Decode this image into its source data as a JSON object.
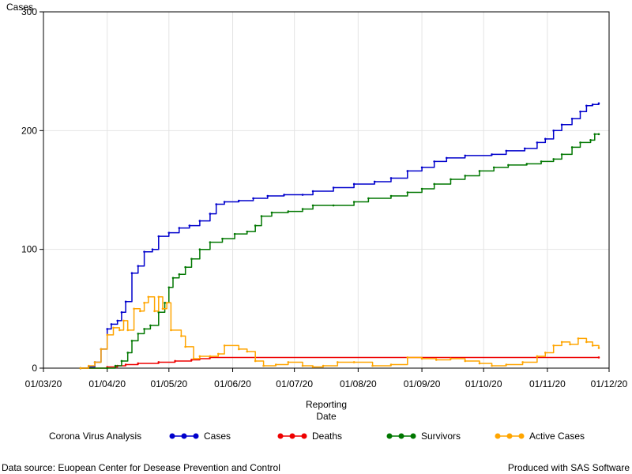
{
  "chart_data": {
    "type": "line",
    "ylabel": "Cases",
    "xlabel": [
      "Reporting",
      "Date"
    ],
    "ylim": [
      0,
      300
    ],
    "yticks": [
      0,
      100,
      200,
      300
    ],
    "xlim": [
      "2020-03-01",
      "2020-12-01"
    ],
    "xticks": [
      {
        "date": "2020-03-01",
        "label": "01/03/20"
      },
      {
        "date": "2020-04-01",
        "label": "01/04/20"
      },
      {
        "date": "2020-05-01",
        "label": "01/05/20"
      },
      {
        "date": "2020-06-01",
        "label": "01/06/20"
      },
      {
        "date": "2020-07-01",
        "label": "01/07/20"
      },
      {
        "date": "2020-08-01",
        "label": "01/08/20"
      },
      {
        "date": "2020-09-01",
        "label": "01/09/20"
      },
      {
        "date": "2020-10-01",
        "label": "01/10/20"
      },
      {
        "date": "2020-11-01",
        "label": "01/11/20"
      },
      {
        "date": "2020-12-01",
        "label": "01/12/20"
      }
    ],
    "grid": true,
    "legend": {
      "title": "Corona Virus Analysis",
      "position": "bottom"
    },
    "series": [
      {
        "name": "Cases",
        "color": "#0000cc",
        "points": [
          [
            "2020-03-19",
            0
          ],
          [
            "2020-03-23",
            1
          ],
          [
            "2020-03-26",
            5
          ],
          [
            "2020-03-29",
            16
          ],
          [
            "2020-04-01",
            33
          ],
          [
            "2020-04-03",
            37
          ],
          [
            "2020-04-06",
            40
          ],
          [
            "2020-04-08",
            47
          ],
          [
            "2020-04-10",
            56
          ],
          [
            "2020-04-13",
            80
          ],
          [
            "2020-04-16",
            86
          ],
          [
            "2020-04-19",
            98
          ],
          [
            "2020-04-23",
            100
          ],
          [
            "2020-04-26",
            111
          ],
          [
            "2020-05-01",
            114
          ],
          [
            "2020-05-06",
            118
          ],
          [
            "2020-05-11",
            120
          ],
          [
            "2020-05-16",
            124
          ],
          [
            "2020-05-21",
            130
          ],
          [
            "2020-05-24",
            138
          ],
          [
            "2020-05-28",
            140
          ],
          [
            "2020-06-04",
            141
          ],
          [
            "2020-06-11",
            143
          ],
          [
            "2020-06-18",
            145
          ],
          [
            "2020-06-26",
            146
          ],
          [
            "2020-07-05",
            146
          ],
          [
            "2020-07-10",
            149
          ],
          [
            "2020-07-20",
            152
          ],
          [
            "2020-07-30",
            155
          ],
          [
            "2020-08-09",
            157
          ],
          [
            "2020-08-17",
            160
          ],
          [
            "2020-08-25",
            166
          ],
          [
            "2020-09-01",
            169
          ],
          [
            "2020-09-07",
            174
          ],
          [
            "2020-09-13",
            177
          ],
          [
            "2020-09-22",
            179
          ],
          [
            "2020-10-05",
            180
          ],
          [
            "2020-10-12",
            183
          ],
          [
            "2020-10-21",
            185
          ],
          [
            "2020-10-27",
            190
          ],
          [
            "2020-10-31",
            193
          ],
          [
            "2020-11-04",
            200
          ],
          [
            "2020-11-08",
            205
          ],
          [
            "2020-11-13",
            210
          ],
          [
            "2020-11-17",
            216
          ],
          [
            "2020-11-20",
            221
          ],
          [
            "2020-11-23",
            222
          ],
          [
            "2020-11-26",
            223
          ]
        ]
      },
      {
        "name": "Deaths",
        "color": "#ee0000",
        "points": [
          [
            "2020-03-19",
            0
          ],
          [
            "2020-04-01",
            1
          ],
          [
            "2020-04-06",
            2
          ],
          [
            "2020-04-10",
            3
          ],
          [
            "2020-04-16",
            4
          ],
          [
            "2020-04-26",
            5
          ],
          [
            "2020-05-04",
            6
          ],
          [
            "2020-05-12",
            7
          ],
          [
            "2020-05-16",
            8
          ],
          [
            "2020-05-21",
            9
          ],
          [
            "2020-11-26",
            9
          ]
        ]
      },
      {
        "name": "Survivors",
        "color": "#007700",
        "points": [
          [
            "2020-03-19",
            0
          ],
          [
            "2020-04-01",
            0
          ],
          [
            "2020-04-05",
            2
          ],
          [
            "2020-04-08",
            6
          ],
          [
            "2020-04-11",
            13
          ],
          [
            "2020-04-13",
            23
          ],
          [
            "2020-04-16",
            29
          ],
          [
            "2020-04-19",
            33
          ],
          [
            "2020-04-22",
            36
          ],
          [
            "2020-04-26",
            47
          ],
          [
            "2020-04-29",
            55
          ],
          [
            "2020-05-01",
            68
          ],
          [
            "2020-05-03",
            76
          ],
          [
            "2020-05-06",
            79
          ],
          [
            "2020-05-09",
            85
          ],
          [
            "2020-05-12",
            92
          ],
          [
            "2020-05-16",
            100
          ],
          [
            "2020-05-21",
            106
          ],
          [
            "2020-05-27",
            109
          ],
          [
            "2020-06-02",
            113
          ],
          [
            "2020-06-08",
            115
          ],
          [
            "2020-06-12",
            120
          ],
          [
            "2020-06-15",
            128
          ],
          [
            "2020-06-20",
            131
          ],
          [
            "2020-06-28",
            132
          ],
          [
            "2020-07-05",
            134
          ],
          [
            "2020-07-10",
            137
          ],
          [
            "2020-07-20",
            137
          ],
          [
            "2020-07-30",
            140
          ],
          [
            "2020-08-06",
            143
          ],
          [
            "2020-08-17",
            145
          ],
          [
            "2020-08-25",
            148
          ],
          [
            "2020-09-01",
            151
          ],
          [
            "2020-09-07",
            155
          ],
          [
            "2020-09-15",
            159
          ],
          [
            "2020-09-22",
            162
          ],
          [
            "2020-09-29",
            166
          ],
          [
            "2020-10-06",
            169
          ],
          [
            "2020-10-13",
            171
          ],
          [
            "2020-10-22",
            172
          ],
          [
            "2020-10-29",
            174
          ],
          [
            "2020-11-04",
            176
          ],
          [
            "2020-11-08",
            180
          ],
          [
            "2020-11-13",
            186
          ],
          [
            "2020-11-17",
            190
          ],
          [
            "2020-11-22",
            192
          ],
          [
            "2020-11-24",
            197
          ],
          [
            "2020-11-26",
            197
          ]
        ]
      },
      {
        "name": "Active Cases",
        "color": "#ffa500",
        "points": [
          [
            "2020-03-19",
            0
          ],
          [
            "2020-03-23",
            2
          ],
          [
            "2020-03-26",
            5
          ],
          [
            "2020-03-29",
            16
          ],
          [
            "2020-04-01",
            28
          ],
          [
            "2020-04-04",
            34
          ],
          [
            "2020-04-07",
            32
          ],
          [
            "2020-04-09",
            40
          ],
          [
            "2020-04-11",
            32
          ],
          [
            "2020-04-14",
            50
          ],
          [
            "2020-04-17",
            48
          ],
          [
            "2020-04-19",
            55
          ],
          [
            "2020-04-21",
            60
          ],
          [
            "2020-04-24",
            48
          ],
          [
            "2020-04-26",
            60
          ],
          [
            "2020-04-28",
            50
          ],
          [
            "2020-04-30",
            55
          ],
          [
            "2020-05-02",
            32
          ],
          [
            "2020-05-07",
            27
          ],
          [
            "2020-05-09",
            18
          ],
          [
            "2020-05-13",
            8
          ],
          [
            "2020-05-16",
            10
          ],
          [
            "2020-05-21",
            10
          ],
          [
            "2020-05-25",
            12
          ],
          [
            "2020-05-28",
            19
          ],
          [
            "2020-06-04",
            16
          ],
          [
            "2020-06-08",
            14
          ],
          [
            "2020-06-12",
            6
          ],
          [
            "2020-06-16",
            2
          ],
          [
            "2020-06-22",
            3
          ],
          [
            "2020-06-28",
            5
          ],
          [
            "2020-07-05",
            2
          ],
          [
            "2020-07-10",
            1
          ],
          [
            "2020-07-15",
            2
          ],
          [
            "2020-07-22",
            5
          ],
          [
            "2020-07-30",
            5
          ],
          [
            "2020-08-08",
            2
          ],
          [
            "2020-08-17",
            3
          ],
          [
            "2020-08-25",
            9
          ],
          [
            "2020-09-01",
            8
          ],
          [
            "2020-09-08",
            7
          ],
          [
            "2020-09-15",
            8
          ],
          [
            "2020-09-22",
            6
          ],
          [
            "2020-09-29",
            4
          ],
          [
            "2020-10-05",
            2
          ],
          [
            "2020-10-12",
            3
          ],
          [
            "2020-10-20",
            5
          ],
          [
            "2020-10-27",
            10
          ],
          [
            "2020-10-31",
            13
          ],
          [
            "2020-11-04",
            19
          ],
          [
            "2020-11-08",
            22
          ],
          [
            "2020-11-12",
            20
          ],
          [
            "2020-11-16",
            25
          ],
          [
            "2020-11-20",
            22
          ],
          [
            "2020-11-23",
            19
          ],
          [
            "2020-11-26",
            17
          ]
        ]
      }
    ]
  },
  "footer": {
    "source": "Data source: Euopean Center for Desease Prevention and Control",
    "credit": "Produced with SAS Software"
  }
}
